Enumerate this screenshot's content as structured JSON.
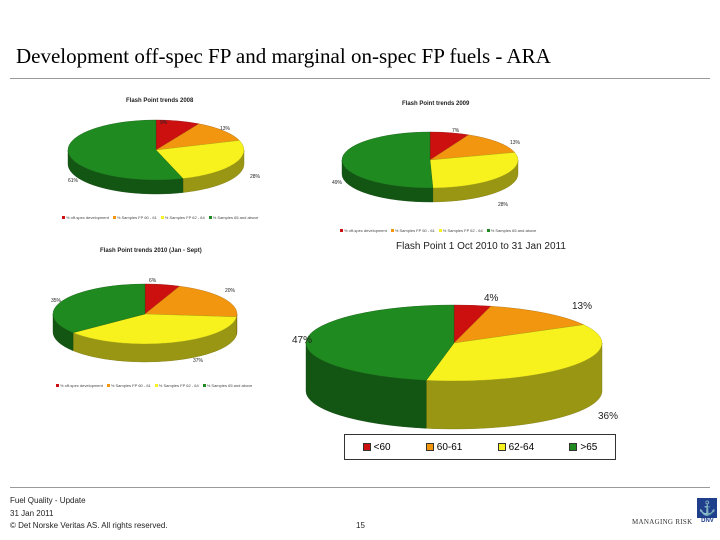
{
  "slide": {
    "title": "Development off-spec FP and marginal on-spec FP fuels - ARA",
    "footer": {
      "line1": "Fuel Quality - Update",
      "line2": "31 Jan 2011",
      "copyright": "© Det Norske Veritas AS. All rights reserved.",
      "page": "15"
    },
    "logo": {
      "tagline": "MANAGING RISK",
      "mark": "DNV"
    }
  },
  "colors": {
    "red": "#cc1010",
    "orange": "#f2960f",
    "yellow": "#f7f21e",
    "green": "#1f8a1f"
  },
  "chart_data": [
    {
      "type": "pie",
      "title": "Flash Point trends 2008",
      "categories": [
        "% off-spec development",
        "% Samples FP 60 - 61",
        "% Samples FP 62 - 64",
        "% Samples 65 and above"
      ],
      "values": [
        9,
        13,
        28,
        61
      ],
      "labels": [
        "9%",
        "13%",
        "28%",
        "61%"
      ],
      "legend": "bottom"
    },
    {
      "type": "pie",
      "title": "Flash Point trends 2009",
      "categories": [
        "% off-spec development",
        "% Samples FP 60 - 61",
        "% Samples FP 62 - 64",
        "% Samples 65 and above"
      ],
      "values": [
        7,
        13,
        28,
        49
      ],
      "labels": [
        "7%",
        "13%",
        "28%",
        "49%"
      ],
      "legend": "bottom"
    },
    {
      "type": "pie",
      "title": "Flash Point trends 2010 (Jan - Sept)",
      "categories": [
        "% off-spec development",
        "% Samples FP 60 - 61",
        "% Samples FP 62 - 64",
        "% Samples 65 and above"
      ],
      "values": [
        6,
        20,
        37,
        35
      ],
      "labels": [
        "6%",
        "20%",
        "37%",
        "35%"
      ],
      "legend": "bottom"
    },
    {
      "type": "pie",
      "title": "Flash Point 1 Oct 2010 to 31 Jan 2011",
      "categories": [
        "<60",
        "60-61",
        "62-64",
        ">65"
      ],
      "values": [
        4,
        13,
        36,
        47
      ],
      "labels": [
        "4%",
        "13%",
        "36%",
        "47%"
      ],
      "legend": "bottom"
    }
  ]
}
